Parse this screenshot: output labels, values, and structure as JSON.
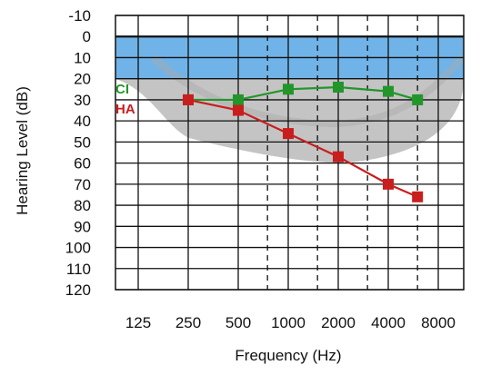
{
  "chart_data": {
    "type": "line",
    "xlabel": "Frequency (Hz)",
    "ylabel": "Hearing Level (dB)",
    "x_categories": [
      "125",
      "250",
      "500",
      "1000",
      "2000",
      "4000",
      "8000"
    ],
    "ylim": [
      -10,
      120
    ],
    "y_ticks": [
      "-10",
      "0",
      "10",
      "20",
      "30",
      "40",
      "50",
      "60",
      "70",
      "80",
      "90",
      "100",
      "110",
      "120"
    ],
    "y_inverted": true,
    "grid": true,
    "normal_range": {
      "from": 0,
      "to": 20,
      "color": "#6fb3e8"
    },
    "speech_banana": {
      "color": "#c4c4c4"
    },
    "series": [
      {
        "name": "CI",
        "color": "#22962a",
        "marker": "square",
        "points": [
          {
            "freq": 250,
            "db": 30
          },
          {
            "freq": 500,
            "db": 30
          },
          {
            "freq": 1000,
            "db": 25
          },
          {
            "freq": 2000,
            "db": 24
          },
          {
            "freq": 4000,
            "db": 26
          },
          {
            "freq": 6000,
            "db": 30
          }
        ]
      },
      {
        "name": "HA",
        "color": "#c81e1e",
        "marker": "square",
        "points": [
          {
            "freq": 250,
            "db": 30
          },
          {
            "freq": 500,
            "db": 35
          },
          {
            "freq": 1000,
            "db": 46
          },
          {
            "freq": 2000,
            "db": 57
          },
          {
            "freq": 4000,
            "db": 70
          },
          {
            "freq": 6000,
            "db": 76
          }
        ]
      }
    ]
  }
}
